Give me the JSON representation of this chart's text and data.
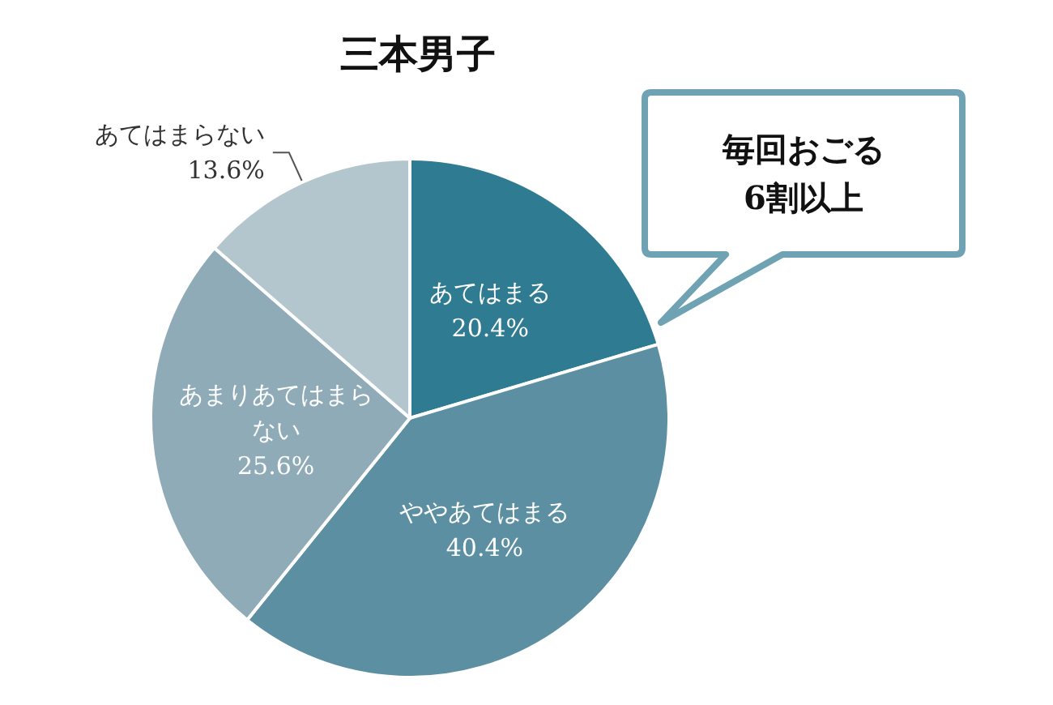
{
  "chart_data": {
    "type": "pie",
    "title": "三本男子",
    "categories": [
      "あてはまる",
      "ややあてはまる",
      "あまりあてはまらない",
      "あてはまらない"
    ],
    "values": [
      20.4,
      40.4,
      25.6,
      13.6
    ],
    "colors": [
      "#2f7b91",
      "#5b8fa1",
      "#8eabb7",
      "#b3c6ce"
    ],
    "value_labels": [
      "20.4%",
      "40.4%",
      "25.6%",
      "13.6%"
    ],
    "annotations": [
      "毎回おごる\n6割以上"
    ]
  }
}
